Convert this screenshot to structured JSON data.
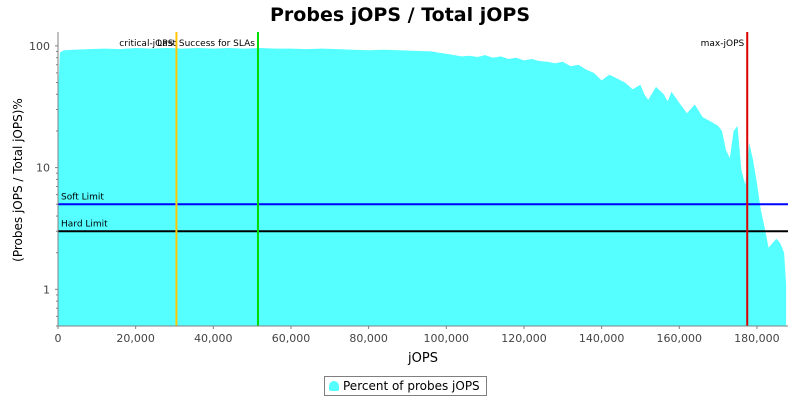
{
  "chart_data": {
    "type": "area",
    "title": "Probes jOPS / Total jOPS",
    "xlabel": "jOPS",
    "ylabel": "(Probes jOPS / Total jOPS)%",
    "y_scale": "log",
    "xlim": [
      0,
      188000
    ],
    "ylim": [
      0.5,
      130
    ],
    "x_ticks": [
      0,
      20000,
      40000,
      60000,
      80000,
      100000,
      120000,
      140000,
      160000,
      180000
    ],
    "x_tick_labels": [
      "0",
      "20,000",
      "40,000",
      "60,000",
      "80,000",
      "100,000",
      "120,000",
      "140,000",
      "160,000",
      "180,000"
    ],
    "y_ticks": [
      1,
      10,
      100
    ],
    "y_tick_labels": [
      "1",
      "10",
      "100"
    ],
    "grid": false,
    "legend_placement": "bottom-center",
    "series": [
      {
        "name": "Percent of probes jOPS",
        "color": "#55ffff",
        "x": [
          0,
          500,
          1500,
          4000,
          8000,
          12000,
          16000,
          20000,
          24000,
          28000,
          32000,
          36000,
          40000,
          44000,
          48000,
          52000,
          56000,
          60000,
          64000,
          68000,
          72000,
          76000,
          80000,
          84000,
          88000,
          92000,
          96000,
          98000,
          100000,
          102000,
          104000,
          106000,
          108000,
          110000,
          112000,
          114000,
          116000,
          118000,
          120000,
          122000,
          124000,
          126000,
          128000,
          130000,
          132000,
          134000,
          136000,
          138000,
          140000,
          142000,
          144000,
          146000,
          148000,
          150000,
          151000,
          152000,
          154000,
          156000,
          157000,
          158000,
          160000,
          162000,
          164000,
          166000,
          168000,
          170000,
          171000,
          172000,
          173000,
          174000,
          175000,
          176000,
          177000,
          178000,
          179000,
          180000,
          181000,
          182000,
          183000,
          184000,
          185000,
          186000,
          187000,
          187500
        ],
        "y": [
          40,
          88,
          92,
          93,
          94,
          95,
          94,
          96,
          95,
          96,
          95,
          96,
          95,
          96,
          95,
          96,
          95,
          95,
          94,
          95,
          94,
          93,
          92,
          93,
          92,
          91,
          90,
          88,
          86,
          84,
          82,
          83,
          81,
          84,
          80,
          82,
          78,
          80,
          76,
          78,
          75,
          74,
          72,
          74,
          68,
          70,
          64,
          60,
          52,
          58,
          54,
          50,
          44,
          48,
          40,
          36,
          46,
          40,
          35,
          42,
          34,
          28,
          33,
          26,
          24,
          22,
          20,
          14,
          12,
          20,
          22,
          9.5,
          7.2,
          16,
          11.5,
          7.5,
          4.5,
          3.2,
          2.2,
          2.4,
          2.6,
          2.4,
          2.0,
          1.1
        ]
      }
    ],
    "markers": [
      {
        "label": "critical-jOPS",
        "x": 30500,
        "color": "#ffc800",
        "label_side": "left"
      },
      {
        "label": "Last Success for SLAs",
        "x": 51500,
        "color": "#00dd00",
        "label_side": "left"
      },
      {
        "label": "max-jOPS",
        "x": 177500,
        "color": "#dd0000",
        "label_side": "left"
      }
    ],
    "thresholds": [
      {
        "label": "Soft Limit",
        "y": 5,
        "color": "#0000ff"
      },
      {
        "label": "Hard Limit",
        "y": 3,
        "color": "#000000"
      }
    ]
  }
}
